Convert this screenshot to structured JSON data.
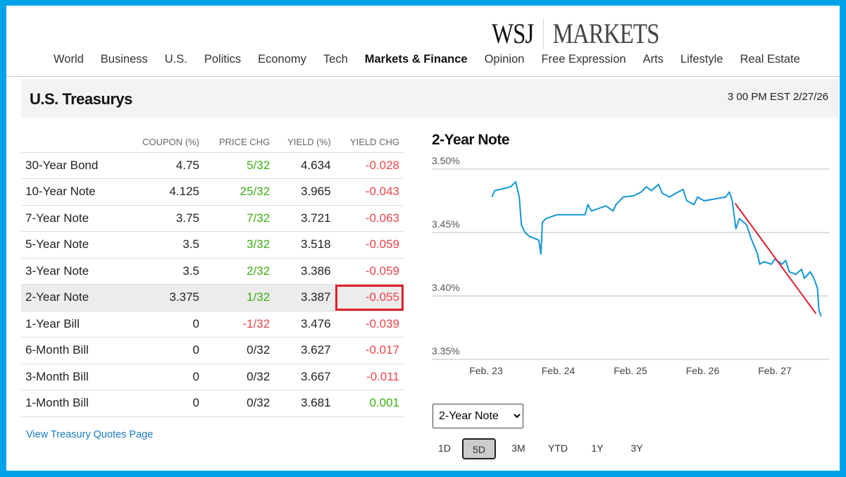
{
  "header": {
    "logo_left": "WSJ",
    "logo_right": "MARKETS",
    "nav": [
      "World",
      "Business",
      "U.S.",
      "Politics",
      "Economy",
      "Tech",
      "Markets & Finance",
      "Opinion",
      "Free Expression",
      "Arts",
      "Lifestyle",
      "Real Estate"
    ],
    "active_nav": "Markets & Finance"
  },
  "section": {
    "title": "U.S. Treasurys",
    "timestamp": "3 00 PM EST 2/27/26"
  },
  "table": {
    "columns": [
      "",
      "COUPON (%)",
      "PRICE CHG",
      "YIELD (%)",
      "YIELD CHG"
    ],
    "rows": [
      {
        "name": "30-Year Bond",
        "coupon": "4.75",
        "price_chg": "5/32",
        "yield": "4.634",
        "yield_chg": "-0.028"
      },
      {
        "name": "10-Year Note",
        "coupon": "4.125",
        "price_chg": "25/32",
        "yield": "3.965",
        "yield_chg": "-0.043"
      },
      {
        "name": "7-Year Note",
        "coupon": "3.75",
        "price_chg": "7/32",
        "yield": "3.721",
        "yield_chg": "-0.063"
      },
      {
        "name": "5-Year Note",
        "coupon": "3.5",
        "price_chg": "3/32",
        "yield": "3.518",
        "yield_chg": "-0.059"
      },
      {
        "name": "3-Year Note",
        "coupon": "3.5",
        "price_chg": "2/32",
        "yield": "3.386",
        "yield_chg": "-0.059"
      },
      {
        "name": "2-Year Note",
        "coupon": "3.375",
        "price_chg": "1/32",
        "yield": "3.387",
        "yield_chg": "-0.055"
      },
      {
        "name": "1-Year Bill",
        "coupon": "0",
        "price_chg": "-1/32",
        "yield": "3.476",
        "yield_chg": "-0.039"
      },
      {
        "name": "6-Month Bill",
        "coupon": "0",
        "price_chg": "0/32",
        "yield": "3.627",
        "yield_chg": "-0.017"
      },
      {
        "name": "3-Month Bill",
        "coupon": "0",
        "price_chg": "0/32",
        "yield": "3.667",
        "yield_chg": "-0.011"
      },
      {
        "name": "1-Month Bill",
        "coupon": "0",
        "price_chg": "0/32",
        "yield": "3.681",
        "yield_chg": "0.001"
      }
    ],
    "selected_row": "2-Year Note",
    "link": "View Treasury Quotes Page"
  },
  "colors": {
    "frame": "#00a3e8",
    "line": "#1296d8",
    "positive": "#3cb012",
    "negative": "#e8464d",
    "annotation": "#e0202a"
  },
  "chart_data": {
    "type": "line",
    "title": "2-Year Note",
    "y_ticks": [
      "3.50%",
      "3.45%",
      "3.40%",
      "3.35%"
    ],
    "ylim": [
      3.35,
      3.5
    ],
    "x_ticks": [
      "Feb. 23",
      "Feb. 24",
      "Feb. 25",
      "Feb. 26",
      "Feb. 27"
    ],
    "x_unit": "days since Feb. 23",
    "grid": true,
    "series": [
      {
        "name": "2-Year Note yield",
        "points": [
          [
            0.08,
            3.478
          ],
          [
            0.12,
            3.483
          ],
          [
            0.34,
            3.486
          ],
          [
            0.41,
            3.49
          ],
          [
            0.46,
            3.478
          ],
          [
            0.49,
            3.456
          ],
          [
            0.54,
            3.45
          ],
          [
            0.6,
            3.447
          ],
          [
            0.73,
            3.444
          ],
          [
            0.76,
            3.433
          ],
          [
            0.78,
            3.458
          ],
          [
            0.83,
            3.461
          ],
          [
            0.98,
            3.464
          ],
          [
            1.07,
            3.464
          ],
          [
            1.37,
            3.464
          ],
          [
            1.41,
            3.472
          ],
          [
            1.46,
            3.467
          ],
          [
            1.56,
            3.469
          ],
          [
            1.66,
            3.471
          ],
          [
            1.76,
            3.467
          ],
          [
            1.8,
            3.472
          ],
          [
            1.9,
            3.478
          ],
          [
            2.05,
            3.479
          ],
          [
            2.15,
            3.482
          ],
          [
            2.22,
            3.486
          ],
          [
            2.29,
            3.483
          ],
          [
            2.39,
            3.488
          ],
          [
            2.44,
            3.481
          ],
          [
            2.54,
            3.478
          ],
          [
            2.63,
            3.481
          ],
          [
            2.73,
            3.484
          ],
          [
            2.78,
            3.475
          ],
          [
            2.88,
            3.472
          ],
          [
            2.93,
            3.478
          ],
          [
            3.02,
            3.475
          ],
          [
            3.22,
            3.477
          ],
          [
            3.32,
            3.478
          ],
          [
            3.37,
            3.482
          ],
          [
            3.41,
            3.475
          ],
          [
            3.46,
            3.453
          ],
          [
            3.51,
            3.461
          ],
          [
            3.61,
            3.456
          ],
          [
            3.66,
            3.447
          ],
          [
            3.76,
            3.433
          ],
          [
            3.79,
            3.425
          ],
          [
            3.85,
            3.427
          ],
          [
            3.95,
            3.425
          ],
          [
            4.0,
            3.429
          ],
          [
            4.1,
            3.425
          ],
          [
            4.15,
            3.428
          ],
          [
            4.2,
            3.419
          ],
          [
            4.29,
            3.417
          ],
          [
            4.37,
            3.421
          ],
          [
            4.41,
            3.414
          ],
          [
            4.49,
            3.419
          ],
          [
            4.54,
            3.414
          ],
          [
            4.59,
            3.406
          ],
          [
            4.61,
            3.389
          ],
          [
            4.64,
            3.384
          ]
        ]
      }
    ],
    "annotation_line": [
      [
        3.45,
        3.473
      ],
      [
        4.57,
        3.386
      ]
    ]
  },
  "controls": {
    "select_value": "2-Year Note",
    "ranges": [
      "1D",
      "5D",
      "3M",
      "YTD",
      "1Y",
      "3Y"
    ],
    "active_range": "5D"
  }
}
